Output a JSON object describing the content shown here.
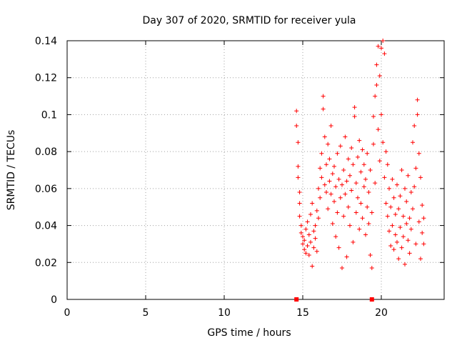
{
  "chart_data": {
    "type": "scatter",
    "title": "Day 307 of 2020, SRMTID for receiver yula",
    "xlabel": "GPS time / hours",
    "ylabel": "SRMTID / TECUs",
    "xlim": [
      0,
      24
    ],
    "ylim": [
      0,
      0.14
    ],
    "xticks": [
      "0",
      "5",
      "10",
      "15",
      "20"
    ],
    "yticks": [
      "0",
      "0.02",
      "0.04",
      "0.06",
      "0.08",
      "0.1",
      "0.12",
      "0.14"
    ],
    "grid": true,
    "marker_color": "#ff0000",
    "zero_markers_x": [
      14.6,
      19.4
    ],
    "points": [
      [
        14.6,
        0.102
      ],
      [
        14.6,
        0.094
      ],
      [
        14.7,
        0.085
      ],
      [
        14.7,
        0.072
      ],
      [
        14.7,
        0.066
      ],
      [
        14.8,
        0.058
      ],
      [
        14.8,
        0.052
      ],
      [
        14.8,
        0.045
      ],
      [
        14.9,
        0.04
      ],
      [
        14.9,
        0.036
      ],
      [
        15.0,
        0.034
      ],
      [
        15.0,
        0.03
      ],
      [
        15.1,
        0.027
      ],
      [
        15.1,
        0.032
      ],
      [
        15.2,
        0.025
      ],
      [
        15.2,
        0.038
      ],
      [
        15.3,
        0.029
      ],
      [
        15.3,
        0.042
      ],
      [
        15.4,
        0.024
      ],
      [
        15.4,
        0.035
      ],
      [
        15.5,
        0.031
      ],
      [
        15.5,
        0.046
      ],
      [
        15.6,
        0.018
      ],
      [
        15.6,
        0.052
      ],
      [
        15.7,
        0.028
      ],
      [
        15.7,
        0.037
      ],
      [
        15.8,
        0.04
      ],
      [
        15.8,
        0.033
      ],
      [
        15.9,
        0.048
      ],
      [
        15.9,
        0.026
      ],
      [
        16.0,
        0.06
      ],
      [
        16.0,
        0.044
      ],
      [
        16.1,
        0.071
      ],
      [
        16.1,
        0.055
      ],
      [
        16.2,
        0.079
      ],
      [
        16.2,
        0.066
      ],
      [
        16.3,
        0.11
      ],
      [
        16.3,
        0.103
      ],
      [
        16.4,
        0.088
      ],
      [
        16.4,
        0.062
      ],
      [
        16.5,
        0.073
      ],
      [
        16.5,
        0.058
      ],
      [
        16.6,
        0.084
      ],
      [
        16.6,
        0.049
      ],
      [
        16.7,
        0.076
      ],
      [
        16.7,
        0.064
      ],
      [
        16.8,
        0.094
      ],
      [
        16.8,
        0.057
      ],
      [
        16.9,
        0.068
      ],
      [
        16.9,
        0.041
      ],
      [
        17.0,
        0.053
      ],
      [
        17.0,
        0.072
      ],
      [
        17.1,
        0.034
      ],
      [
        17.1,
        0.061
      ],
      [
        17.2,
        0.047
      ],
      [
        17.2,
        0.079
      ],
      [
        17.3,
        0.028
      ],
      [
        17.3,
        0.065
      ],
      [
        17.4,
        0.055
      ],
      [
        17.4,
        0.083
      ],
      [
        17.5,
        0.017
      ],
      [
        17.5,
        0.062
      ],
      [
        17.6,
        0.07
      ],
      [
        17.6,
        0.045
      ],
      [
        17.7,
        0.088
      ],
      [
        17.7,
        0.057
      ],
      [
        17.8,
        0.023
      ],
      [
        17.8,
        0.064
      ],
      [
        17.9,
        0.076
      ],
      [
        17.9,
        0.05
      ],
      [
        18.0,
        0.04
      ],
      [
        18.0,
        0.067
      ],
      [
        18.1,
        0.082
      ],
      [
        18.1,
        0.059
      ],
      [
        18.2,
        0.031
      ],
      [
        18.2,
        0.073
      ],
      [
        18.3,
        0.104
      ],
      [
        18.3,
        0.099
      ],
      [
        18.4,
        0.063
      ],
      [
        18.4,
        0.047
      ],
      [
        18.5,
        0.077
      ],
      [
        18.5,
        0.055
      ],
      [
        18.6,
        0.086
      ],
      [
        18.6,
        0.038
      ],
      [
        18.7,
        0.069
      ],
      [
        18.7,
        0.052
      ],
      [
        18.8,
        0.081
      ],
      [
        18.8,
        0.044
      ],
      [
        18.9,
        0.061
      ],
      [
        18.9,
        0.073
      ],
      [
        19.0,
        0.035
      ],
      [
        19.0,
        0.065
      ],
      [
        19.1,
        0.05
      ],
      [
        19.1,
        0.079
      ],
      [
        19.2,
        0.041
      ],
      [
        19.2,
        0.058
      ],
      [
        19.3,
        0.024
      ],
      [
        19.3,
        0.07
      ],
      [
        19.4,
        0.017
      ],
      [
        19.4,
        0.047
      ],
      [
        19.5,
        0.099
      ],
      [
        19.5,
        0.084
      ],
      [
        19.6,
        0.11
      ],
      [
        19.6,
        0.063
      ],
      [
        19.7,
        0.127
      ],
      [
        19.7,
        0.116
      ],
      [
        19.8,
        0.137
      ],
      [
        19.8,
        0.092
      ],
      [
        19.9,
        0.121
      ],
      [
        19.9,
        0.075
      ],
      [
        20.0,
        0.136
      ],
      [
        20.0,
        0.1
      ],
      [
        20.1,
        0.14
      ],
      [
        20.1,
        0.085
      ],
      [
        20.2,
        0.133
      ],
      [
        20.2,
        0.066
      ],
      [
        20.3,
        0.08
      ],
      [
        20.3,
        0.052
      ],
      [
        20.4,
        0.073
      ],
      [
        20.4,
        0.045
      ],
      [
        20.5,
        0.06
      ],
      [
        20.5,
        0.037
      ],
      [
        20.6,
        0.029
      ],
      [
        20.6,
        0.05
      ],
      [
        20.7,
        0.065
      ],
      [
        20.7,
        0.04
      ],
      [
        20.8,
        0.027
      ],
      [
        20.8,
        0.055
      ],
      [
        20.9,
        0.046
      ],
      [
        20.9,
        0.035
      ],
      [
        21.0,
        0.062
      ],
      [
        21.0,
        0.031
      ],
      [
        21.1,
        0.022
      ],
      [
        21.1,
        0.049
      ],
      [
        21.2,
        0.056
      ],
      [
        21.2,
        0.039
      ],
      [
        21.3,
        0.07
      ],
      [
        21.3,
        0.028
      ],
      [
        21.4,
        0.045
      ],
      [
        21.4,
        0.034
      ],
      [
        21.5,
        0.06
      ],
      [
        21.5,
        0.019
      ],
      [
        21.6,
        0.041
      ],
      [
        21.6,
        0.053
      ],
      [
        21.7,
        0.032
      ],
      [
        21.7,
        0.067
      ],
      [
        21.8,
        0.044
      ],
      [
        21.8,
        0.025
      ],
      [
        21.9,
        0.058
      ],
      [
        21.9,
        0.038
      ],
      [
        22.0,
        0.085
      ],
      [
        22.0,
        0.049
      ],
      [
        22.1,
        0.094
      ],
      [
        22.1,
        0.061
      ],
      [
        22.2,
        0.071
      ],
      [
        22.2,
        0.03
      ],
      [
        22.3,
        0.108
      ],
      [
        22.3,
        0.1
      ],
      [
        22.4,
        0.079
      ],
      [
        22.4,
        0.042
      ],
      [
        22.5,
        0.066
      ],
      [
        22.5,
        0.022
      ],
      [
        22.6,
        0.051
      ],
      [
        22.6,
        0.036
      ],
      [
        22.7,
        0.044
      ],
      [
        22.7,
        0.03
      ]
    ]
  }
}
